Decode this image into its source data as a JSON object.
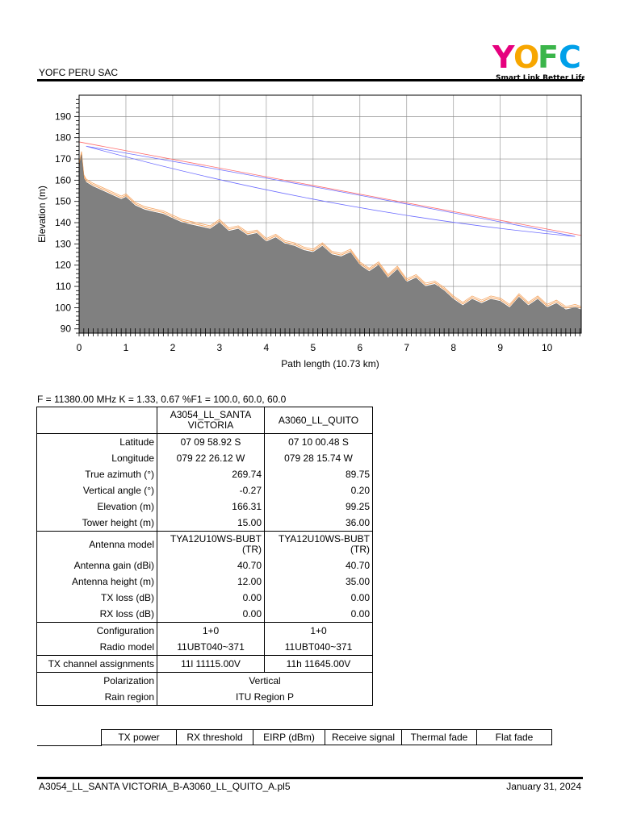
{
  "header": {
    "company": "YOFC PERU SAC",
    "logo_text": "YOFC",
    "logo_tagline": "Smart Link Better Life."
  },
  "chart_data": {
    "type": "area",
    "xlabel": "Path length (10.73 km)",
    "ylabel": "Elevation (m)",
    "xlim": [
      0,
      10.73
    ],
    "ylim": [
      88,
      200
    ],
    "x_ticks": [
      0,
      1,
      2,
      3,
      4,
      5,
      6,
      7,
      8,
      9,
      10
    ],
    "y_ticks": [
      90,
      100,
      110,
      120,
      130,
      140,
      150,
      160,
      170,
      180,
      190
    ],
    "grid": true,
    "terrain": {
      "x": [
        0,
        0.05,
        0.1,
        0.15,
        0.3,
        0.5,
        0.7,
        0.9,
        1.0,
        1.2,
        1.4,
        1.6,
        1.8,
        2.0,
        2.2,
        2.4,
        2.6,
        2.8,
        3.0,
        3.2,
        3.4,
        3.6,
        3.8,
        4.0,
        4.2,
        4.4,
        4.6,
        4.8,
        5.0,
        5.2,
        5.4,
        5.6,
        5.8,
        6.0,
        6.2,
        6.4,
        6.6,
        6.8,
        7.0,
        7.2,
        7.4,
        7.6,
        7.8,
        8.0,
        8.2,
        8.4,
        8.6,
        8.8,
        9.0,
        9.2,
        9.4,
        9.6,
        9.8,
        10.0,
        10.2,
        10.4,
        10.6,
        10.73
      ],
      "y": [
        166,
        172,
        161,
        159,
        157,
        155,
        153,
        151,
        152,
        148,
        146,
        145,
        144,
        142,
        140,
        139,
        138,
        137,
        140,
        136,
        137,
        134,
        135,
        131,
        133,
        130,
        129,
        127,
        126,
        129,
        125,
        124,
        126,
        120,
        117,
        120,
        114,
        118,
        112,
        114,
        110,
        111,
        108,
        104,
        101,
        104,
        102,
        104,
        103,
        100,
        105,
        101,
        104,
        100,
        102,
        99,
        100,
        99
      ]
    },
    "los_line": {
      "x": [
        0,
        10.73
      ],
      "y": [
        178,
        134
      ]
    },
    "fresnel_upper": {
      "x": [
        0.15,
        5.4,
        10.6
      ],
      "y": [
        176,
        156,
        133.5
      ]
    },
    "fresnel_lower": {
      "x": [
        0.15,
        5.4,
        10.6
      ],
      "y": [
        176,
        148,
        133.5
      ]
    }
  },
  "params_line": "F = 11380.00 MHz K = 1.33, 0.67 %F1 = 100.0, 60.0, 60.0",
  "table": {
    "site1": "A3054_LL_SANTA VICTORIA",
    "site2": "A3060_LL_QUITO",
    "rows": {
      "lat": {
        "label": "Latitude",
        "v1": "07 09 58.92 S",
        "v2": "07 10 00.48 S"
      },
      "lon": {
        "label": "Longitude",
        "v1": "079 22 26.12 W",
        "v2": "079 28 15.74 W"
      },
      "az": {
        "label": "True azimuth (°)",
        "v1": "269.74",
        "v2": "89.75"
      },
      "va": {
        "label": "Vertical angle (°)",
        "v1": "-0.27",
        "v2": "0.20"
      },
      "elev": {
        "label": "Elevation (m)",
        "v1": "166.31",
        "v2": "99.25"
      },
      "tower": {
        "label": "Tower height (m)",
        "v1": "15.00",
        "v2": "36.00"
      },
      "ant_model": {
        "label": "Antenna model",
        "v1": "TYA12U10WS-BUBT (TR)",
        "v2": "TYA12U10WS-BUBT (TR)"
      },
      "ant_gain": {
        "label": "Antenna gain (dBi)",
        "v1": "40.70",
        "v2": "40.70"
      },
      "ant_height": {
        "label": "Antenna height (m)",
        "v1": "12.00",
        "v2": "35.00"
      },
      "tx_loss": {
        "label": "TX loss (dB)",
        "v1": "0.00",
        "v2": "0.00"
      },
      "rx_loss": {
        "label": "RX loss (dB)",
        "v1": "0.00",
        "v2": "0.00"
      },
      "config": {
        "label": "Configuration",
        "v1": "1+0",
        "v2": "1+0"
      },
      "radio": {
        "label": "Radio model",
        "v1": "11UBT040~371",
        "v2": "11UBT040~371"
      },
      "txch": {
        "label": "TX channel assignments",
        "v1": "11l 11115.00V",
        "v2": "11h 11645.00V"
      },
      "pol": {
        "label": "Polarization",
        "v": "Vertical"
      },
      "rain": {
        "label": "Rain region",
        "v": "ITU Region P"
      }
    }
  },
  "perf_headers": [
    "TX power",
    "RX threshold",
    "EIRP (dBm)",
    "Receive signal",
    "Thermal fade",
    "Flat fade"
  ],
  "footer": {
    "file": "A3054_LL_SANTA VICTORIA_B-A3060_LL_QUITO_A.pl5",
    "date": "January 31, 2024"
  }
}
